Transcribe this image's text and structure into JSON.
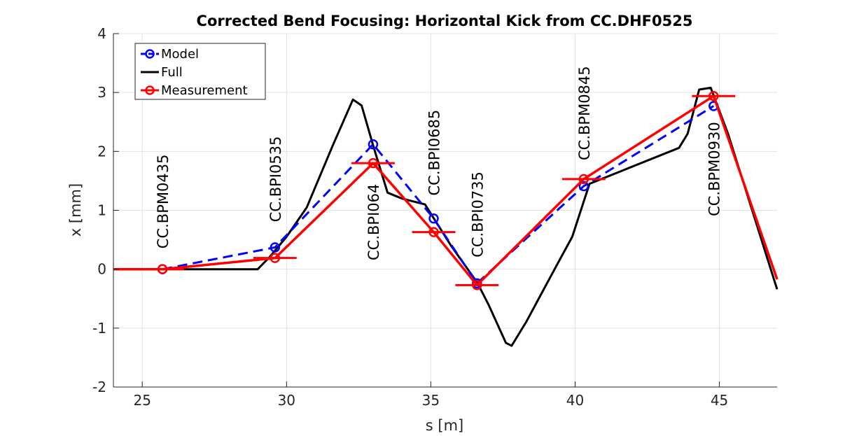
{
  "chart_data": {
    "type": "line",
    "title": "Corrected Bend Focusing: Horizontal Kick from CC.DHF0525",
    "xlabel": "s [m]",
    "ylabel": "x [mm]",
    "xlim": [
      24,
      47
    ],
    "ylim": [
      -2,
      4
    ],
    "xticks": [
      25,
      30,
      35,
      40,
      45
    ],
    "yticks": [
      -2,
      -1,
      0,
      1,
      2,
      3,
      4
    ],
    "grid": true,
    "legend_position": "top-left",
    "series": [
      {
        "name": "Model",
        "color": "#0000ff",
        "style": "dashed",
        "marker": "circle",
        "x": [
          25.7,
          29.6,
          33.0,
          35.1,
          36.6,
          40.3,
          44.8
        ],
        "y": [
          0.0,
          0.37,
          2.12,
          0.86,
          -0.24,
          1.41,
          2.77
        ]
      },
      {
        "name": "Full",
        "color": "#000000",
        "style": "solid",
        "marker": "none",
        "x": [
          24.0,
          25.7,
          29.0,
          29.4,
          30.0,
          30.7,
          31.6,
          32.3,
          32.6,
          33.0,
          33.5,
          34.0,
          34.8,
          35.7,
          36.6,
          37.0,
          37.6,
          37.8,
          38.3,
          39.4,
          39.9,
          40.2,
          40.5,
          43.6,
          43.9,
          44.3,
          44.7,
          45.3,
          47.0
        ],
        "y": [
          0.0,
          0.0,
          0.0,
          0.2,
          0.55,
          1.05,
          2.1,
          2.88,
          2.78,
          2.1,
          1.3,
          1.2,
          1.1,
          0.4,
          -0.22,
          -0.6,
          -1.25,
          -1.3,
          -0.9,
          0.1,
          0.55,
          1.0,
          1.45,
          2.06,
          2.3,
          3.05,
          3.08,
          2.3,
          -0.34
        ]
      },
      {
        "name": "Measurement",
        "color": "#ff0000",
        "style": "solid",
        "marker": "circle",
        "x": [
          24.0,
          25.7,
          29.6,
          33.0,
          35.1,
          36.6,
          40.3,
          44.8,
          47.0
        ],
        "y": [
          0.0,
          0.0,
          0.19,
          1.8,
          0.63,
          -0.27,
          1.53,
          2.94,
          -0.17
        ]
      }
    ],
    "error_bars": {
      "series": "Measurement",
      "x": [
        25.7,
        29.6,
        33.0,
        35.1,
        36.6,
        40.3,
        44.8
      ],
      "y": [
        0.0,
        0.19,
        1.8,
        0.63,
        -0.27,
        1.53,
        2.94
      ],
      "half_width": 0.75
    },
    "annotations": [
      {
        "text": "CC.BPM0435",
        "x": 25.7,
        "y": 0.35
      },
      {
        "text": "CC.BPI0535",
        "x": 29.6,
        "y": 0.8
      },
      {
        "text": "CC.BPI064",
        "x": 33.0,
        "y": 0.15
      },
      {
        "text": "CC.BPI0685",
        "x": 35.1,
        "y": 1.25
      },
      {
        "text": "CC.BPI0735",
        "x": 36.6,
        "y": 0.2
      },
      {
        "text": "CC.BPM0845",
        "x": 40.3,
        "y": 1.85
      },
      {
        "text": "CC.BPM0930",
        "x": 44.8,
        "y": 0.9
      }
    ]
  }
}
